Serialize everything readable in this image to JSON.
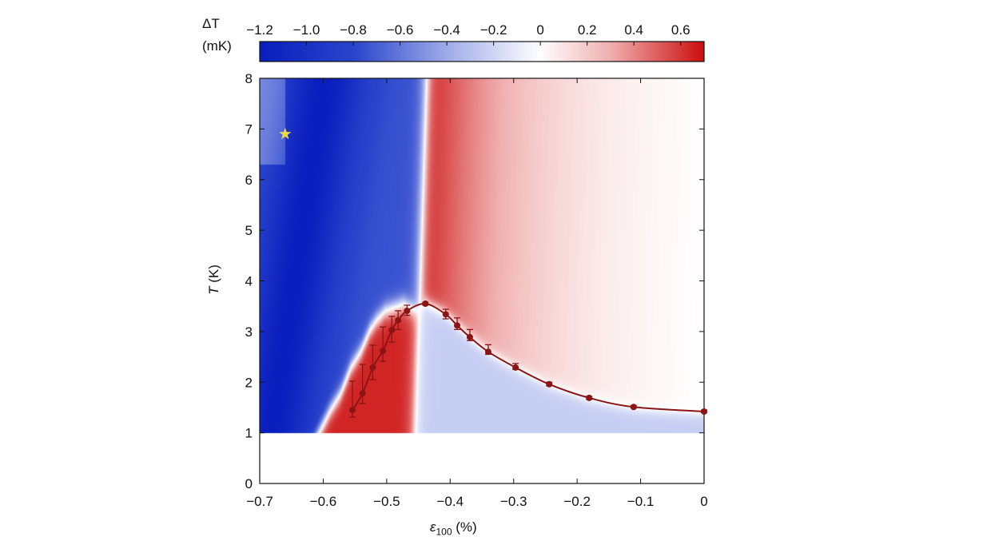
{
  "chart_data": {
    "type": "heatmap",
    "xlabel": "ε",
    "xlabel_sub": "100",
    "xlabel_unit": " (%)",
    "ylabel_italic": "T",
    "ylabel_unit": " (K)",
    "xlim": [
      -0.7,
      0
    ],
    "ylim": [
      0,
      8
    ],
    "x_ticks": [
      "−0.7",
      "−0.6",
      "−0.5",
      "−0.4",
      "−0.3",
      "−0.2",
      "−0.1",
      "0"
    ],
    "x_tick_values": [
      -0.7,
      -0.6,
      -0.5,
      -0.4,
      -0.3,
      -0.2,
      -0.1,
      0
    ],
    "y_ticks": [
      "0",
      "1",
      "2",
      "3",
      "4",
      "5",
      "6",
      "7",
      "8"
    ],
    "y_tick_values": [
      0,
      1,
      2,
      3,
      4,
      5,
      6,
      7,
      8
    ],
    "colorbar": {
      "label": "ΔT",
      "unit": "(mK)",
      "range": [
        -1.2,
        0.7
      ],
      "ticks": [
        "−1.2",
        "−1.0",
        "−0.8",
        "−0.6",
        "−0.4",
        "−0.2",
        "0",
        "0.2",
        "0.4",
        "0.6"
      ],
      "tick_values": [
        -1.2,
        -1.0,
        -0.8,
        -0.6,
        -0.4,
        -0.2,
        0,
        0.2,
        0.4,
        0.6
      ],
      "colormap": [
        "#0a1ebe",
        "#2a45cc",
        "#a0acea",
        "#ffffff",
        "#f0b0b0",
        "#cc1010"
      ]
    },
    "heatmap_T_range": [
      1,
      8
    ],
    "series": [
      {
        "type": "line+markers",
        "color": "#8b1414",
        "x": [
          -0.554,
          -0.538,
          -0.522,
          -0.506,
          -0.492,
          -0.482,
          -0.468,
          -0.439,
          -0.407,
          -0.389,
          -0.369,
          -0.34,
          -0.297,
          -0.244,
          -0.181,
          -0.111,
          0
        ],
        "y": [
          1.45,
          1.78,
          2.29,
          2.62,
          3.03,
          3.22,
          3.41,
          3.55,
          3.34,
          3.12,
          2.89,
          2.6,
          2.29,
          1.96,
          1.69,
          1.51,
          1.42
        ],
        "err_low": [
          1.31,
          1.58,
          2.05,
          2.41,
          2.79,
          3.04,
          3.32,
          3.52,
          3.25,
          3.04,
          2.82,
          2.55,
          2.25,
          1.93,
          1.66,
          1.49,
          1.4
        ],
        "err_high": [
          2.02,
          2.35,
          2.73,
          3.09,
          3.3,
          3.41,
          3.52,
          3.58,
          3.44,
          3.27,
          3.04,
          2.74,
          2.37,
          2.0,
          1.72,
          1.54,
          1.45
        ]
      }
    ],
    "annotations": [
      {
        "type": "star",
        "x": -0.66,
        "y": 6.9,
        "color": "#e8d84a"
      }
    ]
  }
}
